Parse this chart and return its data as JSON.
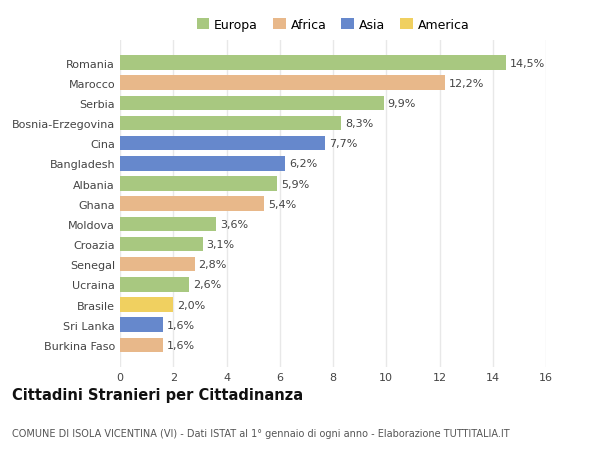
{
  "countries": [
    "Romania",
    "Marocco",
    "Serbia",
    "Bosnia-Erzegovina",
    "Cina",
    "Bangladesh",
    "Albania",
    "Ghana",
    "Moldova",
    "Croazia",
    "Senegal",
    "Ucraina",
    "Brasile",
    "Sri Lanka",
    "Burkina Faso"
  ],
  "values": [
    14.5,
    12.2,
    9.9,
    8.3,
    7.7,
    6.2,
    5.9,
    5.4,
    3.6,
    3.1,
    2.8,
    2.6,
    2.0,
    1.6,
    1.6
  ],
  "labels": [
    "14,5%",
    "12,2%",
    "9,9%",
    "8,3%",
    "7,7%",
    "6,2%",
    "5,9%",
    "5,4%",
    "3,6%",
    "3,1%",
    "2,8%",
    "2,6%",
    "2,0%",
    "1,6%",
    "1,6%"
  ],
  "continent": [
    "Europa",
    "Africa",
    "Europa",
    "Europa",
    "Asia",
    "Asia",
    "Europa",
    "Africa",
    "Europa",
    "Europa",
    "Africa",
    "Europa",
    "America",
    "Asia",
    "Africa"
  ],
  "colors": {
    "Europa": "#a8c880",
    "Africa": "#e8b88a",
    "Asia": "#6688cc",
    "America": "#f0d060"
  },
  "xlim": [
    0,
    16
  ],
  "xticks": [
    0,
    2,
    4,
    6,
    8,
    10,
    12,
    14,
    16
  ],
  "title": "Cittadini Stranieri per Cittadinanza",
  "subtitle": "COMUNE DI ISOLA VICENTINA (VI) - Dati ISTAT al 1° gennaio di ogni anno - Elaborazione TUTTITALIA.IT",
  "background_color": "#ffffff",
  "bar_height": 0.72,
  "bar_alpha": 1.0,
  "grid_color": "#e8e8e8",
  "label_fontsize": 8,
  "ytick_fontsize": 8,
  "xtick_fontsize": 8,
  "title_fontsize": 10.5,
  "subtitle_fontsize": 7,
  "legend_fontsize": 9
}
